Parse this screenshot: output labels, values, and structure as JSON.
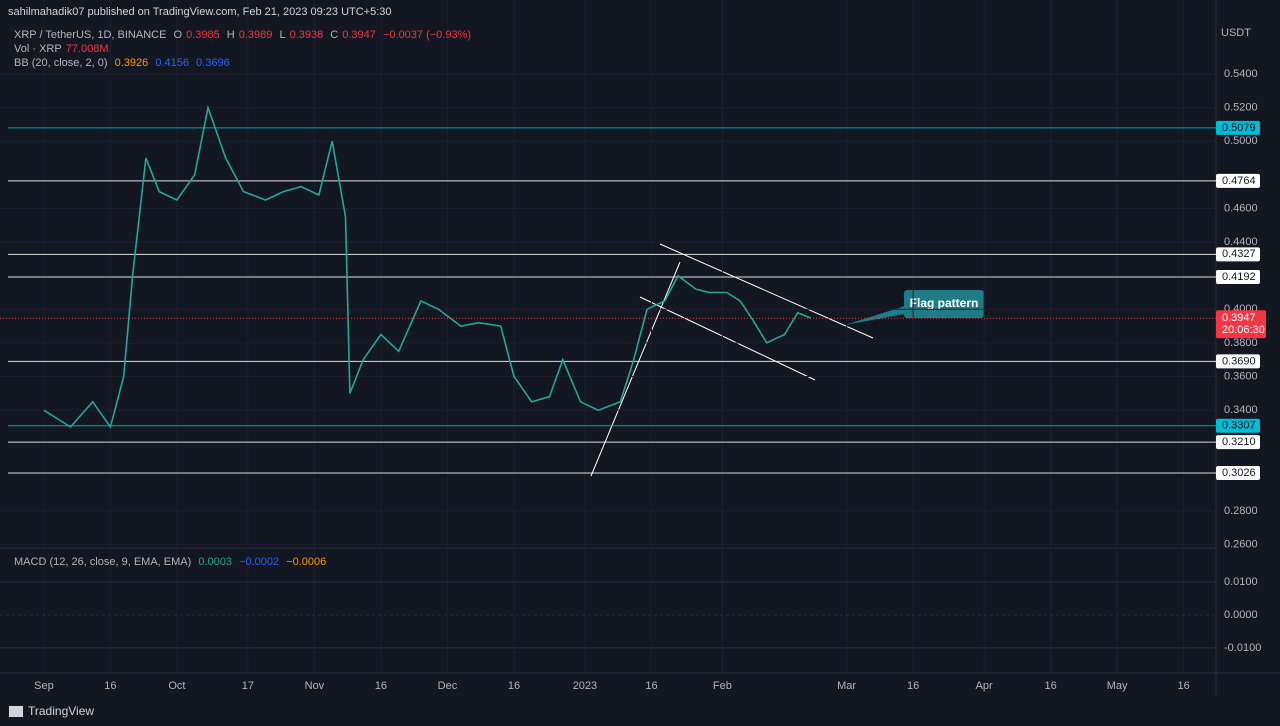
{
  "header": {
    "publisher": "sahilmahadik07 published on TradingView.com, Feb 21, 2023 09:23 UTC+5:30",
    "symbol": "XRP / TetherUS, 1D, BINANCE",
    "ohlc_labels": [
      "O",
      "H",
      "L",
      "C"
    ],
    "ohlc_values": [
      "0.3985",
      "0.3989",
      "0.3938",
      "0.3947"
    ],
    "change": "−0.0037 (−0.93%)",
    "vol_label": "Vol · XRP",
    "vol_value": "77.008M",
    "bb_label": "BB (20, close, 2, 0)",
    "bb_values": [
      "0.3926",
      "0.4156",
      "0.3696"
    ],
    "macd_label": "MACD (12, 26, close, 9, EMA, EMA)",
    "macd_values": [
      "0.0003",
      "−0.0002",
      "−0.0006"
    ]
  },
  "chart_data": {
    "type": "line",
    "color": "#26a69a",
    "currency": "USDT",
    "x": [
      0,
      6,
      11,
      15,
      18,
      20,
      23,
      26,
      30,
      34,
      37,
      41,
      45,
      50,
      54,
      58,
      62,
      65,
      68,
      69,
      72,
      76,
      80,
      85,
      89,
      94,
      98,
      103,
      106,
      110,
      114,
      117,
      121,
      125,
      130,
      133,
      136,
      140,
      143,
      147,
      150,
      154,
      157,
      160,
      163,
      167,
      170,
      173
    ],
    "values": [
      0.34,
      0.33,
      0.345,
      0.33,
      0.36,
      0.42,
      0.49,
      0.47,
      0.465,
      0.48,
      0.52,
      0.49,
      0.47,
      0.465,
      0.47,
      0.473,
      0.468,
      0.5,
      0.455,
      0.35,
      0.37,
      0.385,
      0.375,
      0.405,
      0.4,
      0.39,
      0.392,
      0.39,
      0.36,
      0.345,
      0.348,
      0.37,
      0.345,
      0.34,
      0.345,
      0.37,
      0.4,
      0.405,
      0.42,
      0.412,
      0.41,
      0.41,
      0.405,
      0.393,
      0.38,
      0.385,
      0.398,
      0.3947
    ],
    "xlim": [
      -9.9,
      264.3
    ],
    "xticks": [
      {
        "value": 0,
        "label": "Sep"
      },
      {
        "value": 15,
        "label": "16"
      },
      {
        "value": 30,
        "label": "Oct"
      },
      {
        "value": 46,
        "label": "17"
      },
      {
        "value": 61,
        "label": "Nov"
      },
      {
        "value": 76,
        "label": "16"
      },
      {
        "value": 91,
        "label": "Dec"
      },
      {
        "value": 106,
        "label": "16"
      },
      {
        "value": 122,
        "label": "2023"
      },
      {
        "value": 137,
        "label": "16"
      },
      {
        "value": 153,
        "label": "Feb"
      },
      {
        "value": 181,
        "label": "Mar"
      },
      {
        "value": 196,
        "label": "16"
      },
      {
        "value": 212,
        "label": "Apr"
      },
      {
        "value": 227,
        "label": "16"
      },
      {
        "value": 242,
        "label": "May"
      },
      {
        "value": 257,
        "label": "16"
      }
    ],
    "ylim": [
      0.258,
      0.584
    ],
    "yticks": [
      {
        "value": 0.54,
        "label": "0.5400"
      },
      {
        "value": 0.52,
        "label": "0.5200"
      },
      {
        "value": 0.5,
        "label": "0.5000"
      },
      {
        "value": 0.46,
        "label": "0.4600"
      },
      {
        "value": 0.44,
        "label": "0.4400"
      },
      {
        "value": 0.4,
        "label": "0.4000"
      },
      {
        "value": 0.38,
        "label": "0.3800"
      },
      {
        "value": 0.36,
        "label": "0.3600"
      },
      {
        "value": 0.34,
        "label": "0.3400"
      },
      {
        "value": 0.28,
        "label": "0.2800"
      },
      {
        "value": 0.26,
        "label": "0.2600"
      }
    ],
    "levels": [
      0.5079,
      0.4764,
      0.4327,
      0.4192,
      {
        "value": 0.369,
        "label": "0.3690"
      },
      0.3307,
      {
        "value": 0.321,
        "label": "0.3210"
      },
      0.3026
    ],
    "level_colors": [
      "#00bcd4",
      "#ffffff",
      "#ffffff",
      "#ffffff",
      "#ffffff",
      "#00bcd4",
      "#ffffff",
      "#ffffff"
    ],
    "last_price": 0.3947,
    "last_price_color": "#f23645",
    "countdown": "20:06:30",
    "annotation": "Flag pattern",
    "macd_ylim": [
      -0.0176,
      0.02
    ],
    "macd_yticks": [
      {
        "value": 0.01,
        "label": "0.0100"
      },
      {
        "value": 0,
        "label": "0.0000"
      },
      {
        "value": -0.01,
        "label": "-0.0100"
      }
    ]
  },
  "footer": {
    "brand": "TradingView"
  }
}
